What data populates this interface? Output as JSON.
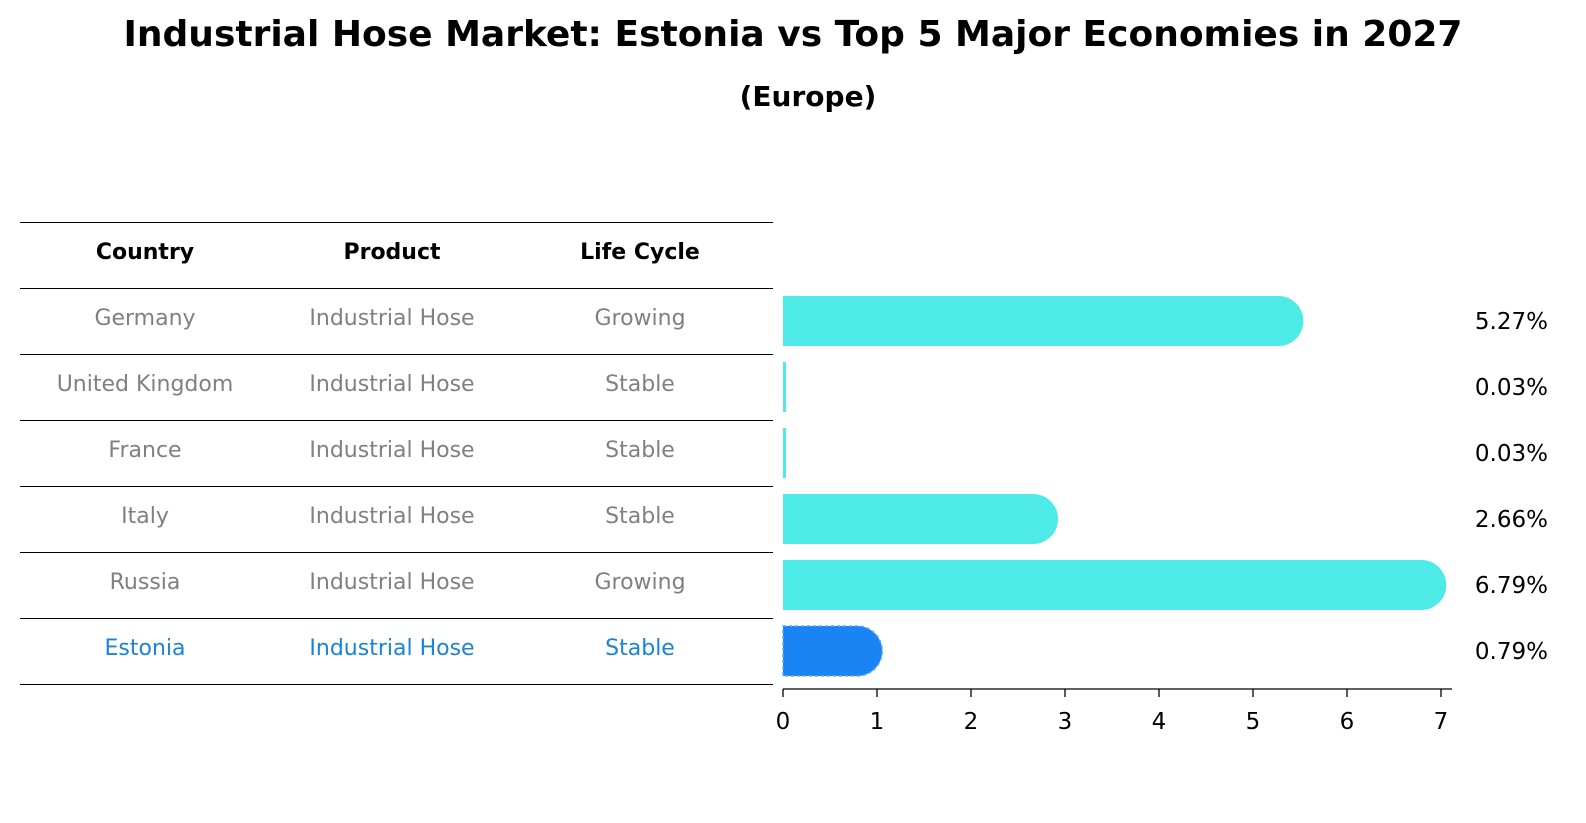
{
  "title": "Industrial Hose Market: Estonia vs Top 5 Major Economies in 2027",
  "subtitle": "(Europe)",
  "table": {
    "headers": [
      "Country",
      "Product",
      "Life Cycle"
    ],
    "rows": [
      {
        "country": "Germany",
        "product": "Industrial Hose",
        "life_cycle": "Growing"
      },
      {
        "country": "United Kingdom",
        "product": "Industrial Hose",
        "life_cycle": "Stable"
      },
      {
        "country": "France",
        "product": "Industrial Hose",
        "life_cycle": "Stable"
      },
      {
        "country": "Italy",
        "product": "Industrial Hose",
        "life_cycle": "Stable"
      },
      {
        "country": "Russia",
        "product": "Industrial Hose",
        "life_cycle": "Growing"
      },
      {
        "country": "Estonia",
        "product": "Industrial Hose",
        "life_cycle": "Stable"
      }
    ]
  },
  "colors": {
    "bar": "#4deae8",
    "highlight_bar": "#1a84f5",
    "highlight_text": "#1a84d6",
    "muted_text": "#808080"
  },
  "chart_data": {
    "type": "bar",
    "orientation": "horizontal",
    "categories": [
      "Germany",
      "United Kingdom",
      "France",
      "Italy",
      "Russia",
      "Estonia"
    ],
    "values": [
      5.27,
      0.03,
      0.03,
      2.66,
      6.79,
      0.79
    ],
    "value_labels": [
      "5.27%",
      "0.03%",
      "0.03%",
      "2.66%",
      "6.79%",
      "0.79%"
    ],
    "highlight": "Estonia",
    "xlim": [
      0,
      7
    ],
    "xticks": [
      0,
      1,
      2,
      3,
      4,
      5,
      6,
      7
    ],
    "xlabel": "",
    "ylabel": ""
  }
}
